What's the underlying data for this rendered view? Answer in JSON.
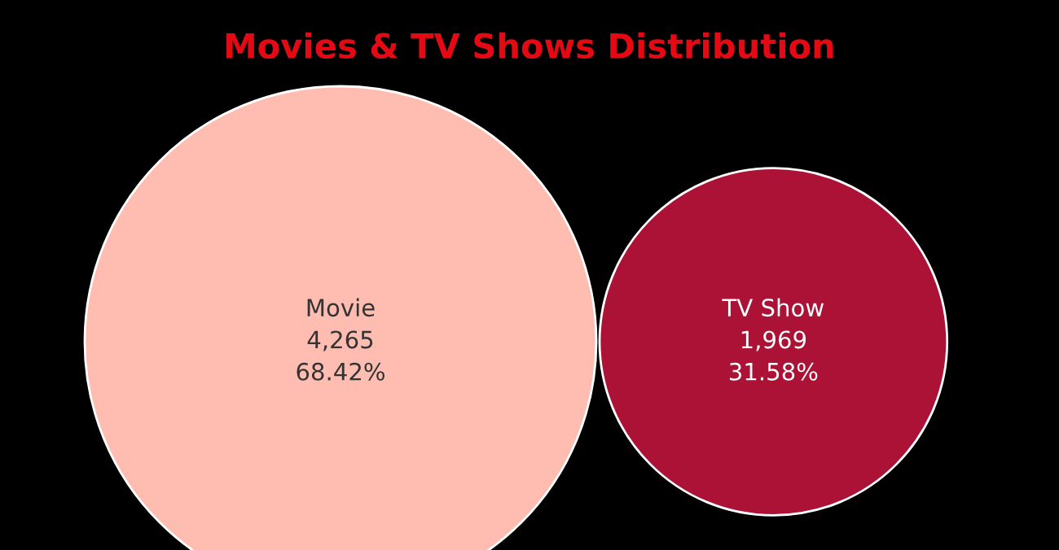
{
  "chart_data": {
    "type": "other",
    "title": "Movies & TV Shows Distribution",
    "categories": [
      "Movie",
      "TV Show"
    ],
    "values": [
      4265,
      1969
    ],
    "colors": [
      "#ffbcb0",
      "#ab1236"
    ],
    "value_labels": [
      "4,265\n68.42%",
      "1,969\n31.58%"
    ],
    "legend": false
  }
}
